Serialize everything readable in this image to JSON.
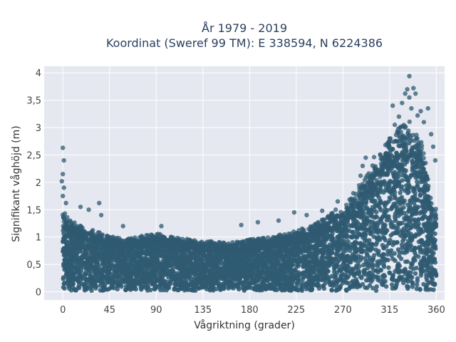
{
  "chart_data": {
    "type": "scatter",
    "title_line1": "År 1979 - 2019",
    "title_line2": "Koordinat (Sweref 99 TM): E 338594, N 6224386",
    "xlabel": "Vågriktning (grader)",
    "ylabel": "Signifikant våghöjd (m)",
    "xlim": [
      -18,
      368
    ],
    "ylim": [
      -0.15,
      4.12
    ],
    "xticks": [
      0,
      45,
      90,
      135,
      180,
      225,
      270,
      315,
      360
    ],
    "xtick_labels": [
      "0",
      "45",
      "90",
      "135",
      "180",
      "225",
      "270",
      "315",
      "360"
    ],
    "yticks": [
      0,
      0.5,
      1,
      1.5,
      2,
      2.5,
      3,
      3.5,
      4
    ],
    "ytick_labels": [
      "0",
      "0,5",
      "1",
      "1,5",
      "2",
      "2,5",
      "3",
      "3,5",
      "4"
    ],
    "grid": true,
    "marker_color": "#2f5a72",
    "plot_bg": "#e5e8f0",
    "envelope": {
      "x": [
        0,
        5,
        15,
        30,
        45,
        60,
        75,
        90,
        105,
        120,
        135,
        150,
        165,
        180,
        195,
        210,
        225,
        240,
        255,
        270,
        280,
        290,
        300,
        310,
        320,
        330,
        335,
        340,
        345,
        350,
        355,
        360
      ],
      "dense_max": [
        1.4,
        1.25,
        1.15,
        1.05,
        0.95,
        0.9,
        0.95,
        1.0,
        0.95,
        0.9,
        0.88,
        0.85,
        0.85,
        0.9,
        0.92,
        0.98,
        1.05,
        1.15,
        1.3,
        1.45,
        1.65,
        1.95,
        2.2,
        2.5,
        2.75,
        2.9,
        2.95,
        2.85,
        2.6,
        2.2,
        1.6,
        1.4
      ]
    },
    "outliers": [
      {
        "x": 0,
        "y": 2.63
      },
      {
        "x": 1,
        "y": 2.4
      },
      {
        "x": 0,
        "y": 2.15
      },
      {
        "x": -1,
        "y": 2.02
      },
      {
        "x": 1,
        "y": 1.9
      },
      {
        "x": 0,
        "y": 1.75
      },
      {
        "x": 3,
        "y": 1.62
      },
      {
        "x": 35,
        "y": 1.62
      },
      {
        "x": 17,
        "y": 1.55
      },
      {
        "x": 25,
        "y": 1.5
      },
      {
        "x": 37,
        "y": 1.4
      },
      {
        "x": 58,
        "y": 1.2
      },
      {
        "x": 95,
        "y": 1.2
      },
      {
        "x": 172,
        "y": 1.22
      },
      {
        "x": 188,
        "y": 1.27
      },
      {
        "x": 208,
        "y": 1.3
      },
      {
        "x": 223,
        "y": 1.45
      },
      {
        "x": 235,
        "y": 1.4
      },
      {
        "x": 250,
        "y": 1.48
      },
      {
        "x": 263,
        "y": 1.5
      },
      {
        "x": 265,
        "y": 1.65
      },
      {
        "x": 280,
        "y": 1.8
      },
      {
        "x": 287,
        "y": 2.12
      },
      {
        "x": 289,
        "y": 2.3
      },
      {
        "x": 292,
        "y": 2.45
      },
      {
        "x": 300,
        "y": 2.46
      },
      {
        "x": 306,
        "y": 2.5
      },
      {
        "x": 311,
        "y": 2.68
      },
      {
        "x": 315,
        "y": 2.8
      },
      {
        "x": 320,
        "y": 3.05
      },
      {
        "x": 324,
        "y": 3.2
      },
      {
        "x": 327,
        "y": 3.45
      },
      {
        "x": 330,
        "y": 3.62
      },
      {
        "x": 332,
        "y": 3.7
      },
      {
        "x": 334,
        "y": 3.55
      },
      {
        "x": 336,
        "y": 3.35
      },
      {
        "x": 338,
        "y": 3.72
      },
      {
        "x": 340,
        "y": 3.62
      },
      {
        "x": 342,
        "y": 3.22
      },
      {
        "x": 345,
        "y": 3.3
      },
      {
        "x": 348,
        "y": 3.1
      },
      {
        "x": 352,
        "y": 3.35
      },
      {
        "x": 355,
        "y": 2.88
      },
      {
        "x": 357,
        "y": 2.65
      },
      {
        "x": 359,
        "y": 2.4
      },
      {
        "x": 334,
        "y": 3.94
      },
      {
        "x": 318,
        "y": 3.4
      },
      {
        "x": 325,
        "y": 3.0
      }
    ]
  }
}
